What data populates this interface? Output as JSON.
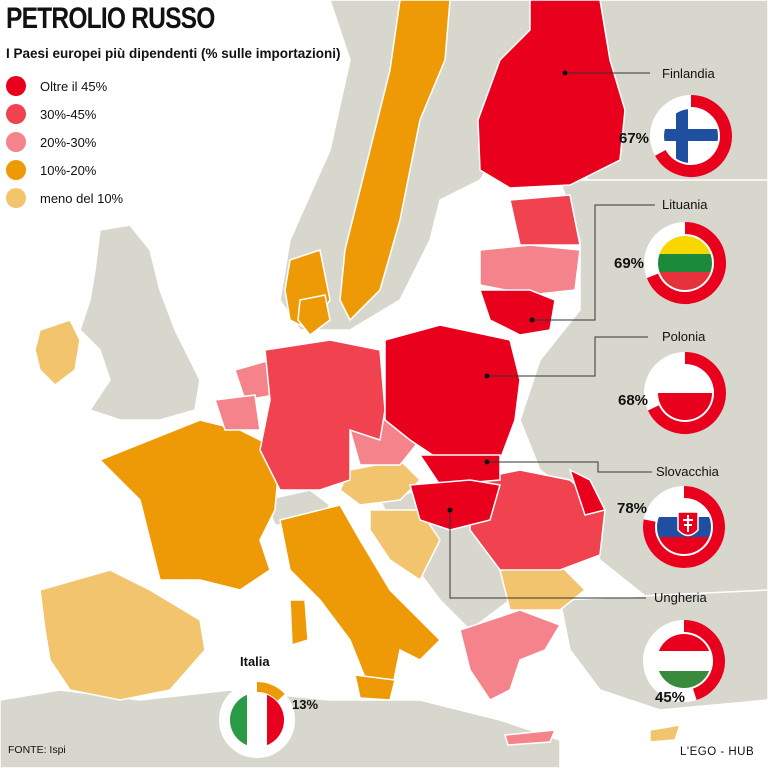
{
  "header": {
    "title": "PETROLIO RUSSO",
    "subtitle": "I Paesi europei più dipendenti (% sulle importazioni)"
  },
  "legend": [
    {
      "label": "Oltre il 45%",
      "color": "#e8001c"
    },
    {
      "label": "30%-45%",
      "color": "#f0434f"
    },
    {
      "label": "20%-30%",
      "color": "#f4838b"
    },
    {
      "label": "10%-20%",
      "color": "#ee9a07"
    },
    {
      "label": "meno del 10%",
      "color": "#f3c46e"
    }
  ],
  "callouts": [
    {
      "country": "Finlandia",
      "percent": "67%",
      "value": 67,
      "flag": "finland-flag"
    },
    {
      "country": "Lituania",
      "percent": "69%",
      "value": 69,
      "flag": "lithuania-flag"
    },
    {
      "country": "Polonia",
      "percent": "68%",
      "value": 68,
      "flag": "poland-flag"
    },
    {
      "country": "Slovacchia",
      "percent": "78%",
      "value": 78,
      "flag": "slovakia-flag"
    },
    {
      "country": "Ungheria",
      "percent": "45%",
      "value": 45,
      "flag": "hungary-flag"
    }
  ],
  "italy": {
    "country": "Italia",
    "percent": "13%",
    "value": 13,
    "color": "#ee9a07",
    "flag": "italy-flag"
  },
  "footer": {
    "source": "FONTE: Ispi",
    "brand": "L'EGO - HUB"
  },
  "colors": {
    "land": "#d8d7cd",
    "sea": "#ffffff",
    "highlight_ring": "#e8001c"
  }
}
